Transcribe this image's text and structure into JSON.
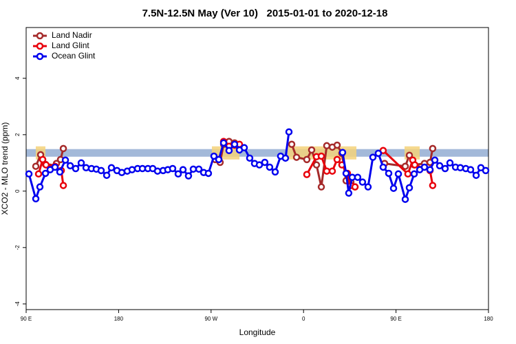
{
  "chart_data": {
    "type": "line",
    "title": "7.5N-12.5N May (Ver 10)   2015-01-01 to 2020-12-18",
    "xlabel": "Longitude",
    "ylabel": "XCO2 - MLO trend (ppm)",
    "xlim": [
      90,
      540
    ],
    "xticks": [
      {
        "value": 90,
        "label": "90 E"
      },
      {
        "value": 180,
        "label": "180"
      },
      {
        "value": 270,
        "label": "90 W"
      },
      {
        "value": 360,
        "label": "0"
      },
      {
        "value": 450,
        "label": "90 E"
      },
      {
        "value": 540,
        "label": "180"
      }
    ],
    "ylim": [
      -4.2,
      5.8
    ],
    "yticks": [
      -4,
      -2,
      0,
      2,
      4
    ],
    "reference_band": [
      1.22,
      1.49
    ],
    "band_color": "#a3b9d9",
    "legend": "top-left",
    "series": [
      {
        "name": "Land Nadir",
        "color": "#a52a2a",
        "x": [
          99.4,
          104.1,
          108.8,
          113.4,
          119.5,
          123.5,
          126.2,
          null,
          274.1,
          278.8,
          282.2,
          287.5,
          292.9,
          297.6,
          null,
          348.5,
          353.2,
          363.2,
          367.9,
          372.6,
          377.3,
          382.6,
          388,
          392.7,
          397.3,
          401.4,
          406.1,
          410.1,
          null,
          438.9,
          459,
          463,
          467.7,
          477.7,
          483.1,
          485.7
        ],
        "values": [
          0.88,
          1.29,
          0.95,
          0.85,
          0.98,
          1.12,
          1.51,
          null,
          1.12,
          1.02,
          1.66,
          1.76,
          1.71,
          1.56,
          null,
          1.66,
          1.2,
          1.12,
          1.46,
          0.93,
          0.15,
          1.61,
          1.56,
          1.63,
          1.34,
          0.37,
          0.32,
          0.15,
          null,
          0.98,
          0.88,
          1.27,
          0.93,
          0.98,
          1.02,
          1.51
        ]
      },
      {
        "name": "Land Glint",
        "color": "#e8000b",
        "x": [
          102.1,
          106.1,
          109.4,
          118.1,
          124.2,
          126.2,
          null,
          282.2,
          287.5,
          292.9,
          297.6,
          null,
          363.2,
          372.6,
          377.3,
          382.6,
          388,
          392.7,
          397.3,
          402.7,
          406.1,
          410.1,
          null,
          437.5,
          461.6,
          466.3,
          468.3,
          483.1,
          485.7
        ],
        "values": [
          0.61,
          1.12,
          0.93,
          0.88,
          0.73,
          0.2,
          null,
          1.76,
          1.59,
          1.63,
          1.66,
          null,
          0.59,
          1.22,
          1.24,
          0.71,
          0.71,
          1.12,
          0.93,
          0.63,
          0.2,
          0.15,
          null,
          1.44,
          0.61,
          1.1,
          0.93,
          0.73,
          0.2
        ]
      },
      {
        "name": "Ocean Glint",
        "color": "#0000ee",
        "x": [
          92.7,
          99.4,
          103.4,
          108.8,
          113.4,
          118.1,
          122.8,
          128.2,
          132.9,
          138.2,
          143.6,
          148.3,
          153.6,
          158.3,
          163,
          168.4,
          173,
          178.4,
          183.1,
          188.4,
          193.1,
          198.5,
          203.2,
          208.5,
          213.2,
          217.9,
          223.3,
          227.9,
          232.6,
          238,
          242.7,
          248,
          252.7,
          258.1,
          262.8,
          267.4,
          272.8,
          277.5,
          282.2,
          287.5,
          292.9,
          297.6,
          302.3,
          307.6,
          312.3,
          317,
          322.3,
          327,
          332.4,
          337.7,
          342.4,
          345.8,
          null,
          398,
          401.4,
          404,
          407.4,
          412.7,
          417.4,
          422.8,
          427.5,
          432.8,
          437.5,
          442.9,
          447.6,
          452.3,
          459,
          463,
          467.7,
          473.1,
          477.7,
          483.1,
          487.8,
          492.5,
          497.8,
          502.5,
          507.9,
          512.6,
          517.9,
          522.6,
          528,
          532.6,
          537.3
        ],
        "values": [
          0.61,
          -0.27,
          0.15,
          0.63,
          0.76,
          0.85,
          0.68,
          1.1,
          0.9,
          0.8,
          1.0,
          0.83,
          0.8,
          0.78,
          0.73,
          0.56,
          0.83,
          0.73,
          0.66,
          0.71,
          0.76,
          0.8,
          0.8,
          0.8,
          0.8,
          0.71,
          0.73,
          0.76,
          0.8,
          0.61,
          0.76,
          0.54,
          0.78,
          0.78,
          0.66,
          0.63,
          1.24,
          1.12,
          1.71,
          1.44,
          1.66,
          1.46,
          1.54,
          1.17,
          0.98,
          0.93,
          1.02,
          0.85,
          0.68,
          1.24,
          1.17,
          2.1,
          null,
          1.37,
          0.63,
          -0.07,
          0.49,
          0.49,
          0.32,
          0.15,
          1.2,
          1.34,
          0.85,
          0.63,
          0.1,
          0.61,
          -0.29,
          0.12,
          0.61,
          0.76,
          0.85,
          0.76,
          1.1,
          0.9,
          0.8,
          1.0,
          0.85,
          0.83,
          0.8,
          0.76,
          0.56,
          0.83,
          0.73
        ]
      }
    ]
  }
}
